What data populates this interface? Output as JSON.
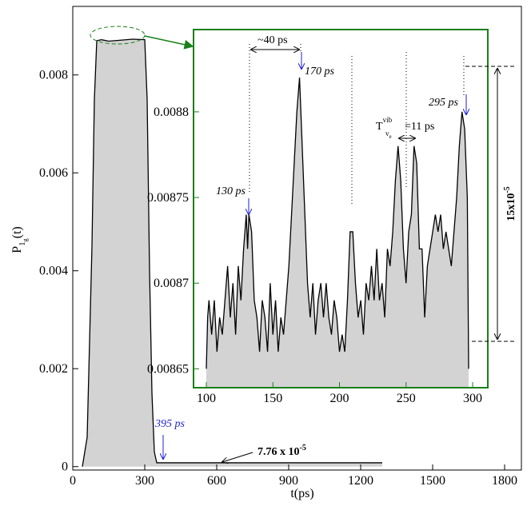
{
  "chart_data": [
    {
      "type": "line",
      "xlabel": "t(ps)",
      "ylabel": {
        "base": "P",
        "sub": "1",
        "subsub": "g",
        "tail": "(t)"
      },
      "x": [
        40,
        60,
        80,
        90,
        100,
        120,
        150,
        200,
        250,
        300,
        310,
        320,
        330,
        340,
        350,
        400,
        600,
        900,
        1200,
        1290
      ],
      "series": [
        {
          "color": "#000000",
          "fill": "#d3d3d3",
          "values": [
            0,
            0.0006,
            0.0045,
            0.0075,
            0.0087,
            0.00872,
            0.00869,
            0.00871,
            0.00873,
            0.00872,
            0.0075,
            0.004,
            0.0015,
            0.0003,
            7.76e-05,
            7.76e-05,
            7.76e-05,
            7.76e-05,
            7.76e-05,
            7.76e-05
          ]
        }
      ],
      "xlim": [
        0,
        1870
      ],
      "ylim": [
        -7e-05,
        0.0094
      ],
      "xticks": [
        0,
        300,
        600,
        900,
        1200,
        1500,
        1800
      ],
      "yticks": [
        0,
        0.002,
        0.004,
        0.006,
        0.008
      ],
      "grid": false,
      "annotations": [
        {
          "text": "395 ps"
        },
        {
          "text": "7.76 x 10",
          "sup": "-5"
        }
      ]
    },
    {
      "type": "line",
      "x": [
        100,
        101,
        102,
        104,
        106,
        108,
        110,
        112,
        114,
        116,
        118,
        120,
        122,
        124,
        126,
        128,
        130,
        131,
        132,
        134,
        136,
        138,
        140,
        142,
        144,
        146,
        148,
        150,
        152,
        154,
        156,
        158,
        160,
        162,
        164,
        166,
        168,
        170,
        172,
        174,
        176,
        178,
        180,
        182,
        184,
        186,
        188,
        190,
        192,
        194,
        196,
        198,
        200,
        202,
        204,
        206,
        208,
        210,
        212,
        214,
        216,
        218,
        220,
        222,
        224,
        226,
        228,
        230,
        232,
        234,
        236,
        238,
        240,
        242,
        244,
        246,
        248,
        250,
        252,
        254,
        256,
        258,
        260,
        262,
        264,
        266,
        268,
        270,
        272,
        274,
        276,
        278,
        280,
        282,
        284,
        286,
        288,
        290,
        292,
        294,
        296,
        297
      ],
      "series": [
        {
          "color": "#000000",
          "fill": "#d3d3d3",
          "values": [
            0.00865,
            0.00868,
            0.00869,
            0.00867,
            0.00869,
            0.00866,
            0.00868,
            0.00867,
            0.00869,
            0.00871,
            0.00868,
            0.0087,
            0.00867,
            0.00871,
            0.00869,
            0.00872,
            0.00874,
            0.00872,
            0.00874,
            0.00873,
            0.00869,
            0.00868,
            0.00866,
            0.00869,
            0.00868,
            0.00866,
            0.0087,
            0.00867,
            0.00869,
            0.00866,
            0.00868,
            0.00867,
            0.00869,
            0.00871,
            0.00874,
            0.00877,
            0.0088,
            0.00882,
            0.00878,
            0.00874,
            0.0087,
            0.00868,
            0.0087,
            0.00867,
            0.00869,
            0.0087,
            0.00868,
            0.0087,
            0.00868,
            0.00867,
            0.00869,
            0.00868,
            0.00866,
            0.00867,
            0.00866,
            0.00869,
            0.00873,
            0.00873,
            0.0087,
            0.00868,
            0.00869,
            0.00867,
            0.0087,
            0.00869,
            0.00871,
            0.00869,
            0.00872,
            0.00869,
            0.0087,
            0.00868,
            0.00872,
            0.00871,
            0.00873,
            0.00876,
            0.00878,
            0.00876,
            0.00872,
            0.0087,
            0.00873,
            0.00874,
            0.00878,
            0.00877,
            0.00872,
            0.00872,
            0.00868,
            0.00871,
            0.00872,
            0.00873,
            0.00874,
            0.00873,
            0.00874,
            0.00872,
            0.00873,
            0.00872,
            0.00871,
            0.00873,
            0.00875,
            0.00878,
            0.0088,
            0.00879,
            0.00875,
            0.00865
          ]
        }
      ],
      "xlim": [
        90.4,
        311.4
      ],
      "ylim": [
        0.008639,
        0.008848
      ],
      "xticks": [
        100,
        150,
        200,
        250,
        300
      ],
      "yticks": [
        0.00865,
        0.0087,
        0.00875,
        0.0088
      ],
      "grid": false,
      "frame_color": "#1a7f1a",
      "annotations": [
        {
          "text": "~40 ps"
        },
        {
          "text": "170 ps"
        },
        {
          "text": "130 ps"
        },
        {
          "text": "295 ps"
        },
        {
          "base": "T",
          "sup": "vib",
          "sub": "v",
          "subsub": "e",
          "tail": "=11 ps"
        },
        {
          "text": "15x10",
          "sup": "-5"
        }
      ]
    }
  ]
}
